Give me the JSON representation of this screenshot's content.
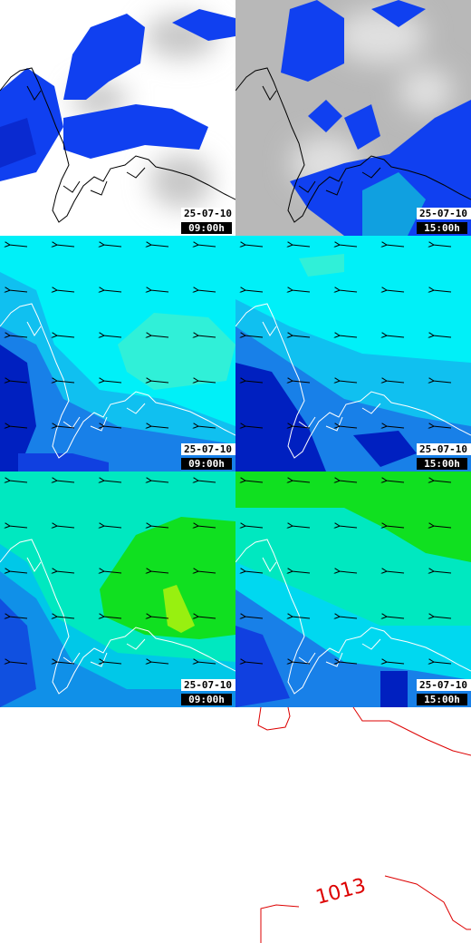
{
  "panels": [
    {
      "date": "25-07-10",
      "time": "09:00h"
    },
    {
      "date": "25-07-10",
      "time": "15:00h"
    },
    {
      "date": "25-07-10",
      "time": "09:00h"
    },
    {
      "date": "25-07-10",
      "time": "15:00h"
    },
    {
      "date": "25-07-10",
      "time": "09:00h"
    },
    {
      "date": "25-07-10",
      "time": "15:00h"
    }
  ],
  "isobar_label": "1013"
}
